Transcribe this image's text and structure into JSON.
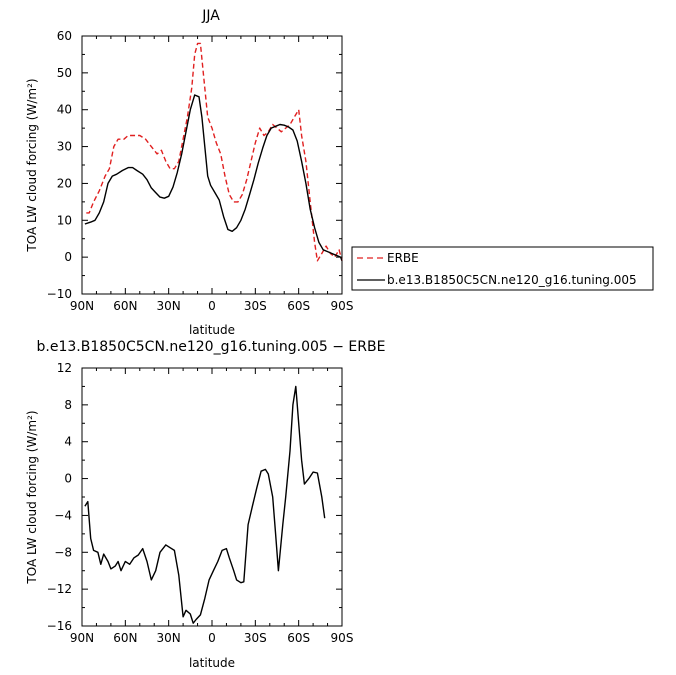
{
  "chart_data": [
    {
      "type": "line",
      "title": "JJA",
      "xlabel": "latitude",
      "ylabel": "TOA LW cloud forcing (W/m²)",
      "xlim": [
        -90,
        90
      ],
      "ylim": [
        -10,
        60
      ],
      "x_ticks": [
        -90,
        -60,
        -30,
        0,
        30,
        60,
        90
      ],
      "x_tick_labels": [
        "90N",
        "60N",
        "30N",
        "0",
        "30S",
        "60S",
        "90S"
      ],
      "y_ticks": [
        -10,
        0,
        10,
        20,
        30,
        40,
        50,
        60
      ],
      "y_tick_labels": [
        "−10",
        "0",
        "10",
        "20",
        "30",
        "40",
        "50",
        "60"
      ],
      "legend": "right",
      "series": [
        {
          "name": "ERBE",
          "color": "#e02020",
          "dash": "dashed",
          "points": [
            [
              -87,
              12
            ],
            [
              -85,
              12
            ],
            [
              -82,
              15
            ],
            [
              -78,
              18
            ],
            [
              -74,
              22
            ],
            [
              -71,
              24
            ],
            [
              -68,
              30
            ],
            [
              -65,
              32
            ],
            [
              -61,
              32
            ],
            [
              -58,
              33
            ],
            [
              -54,
              33
            ],
            [
              -50,
              33
            ],
            [
              -46,
              32
            ],
            [
              -42,
              30
            ],
            [
              -38,
              28
            ],
            [
              -35,
              29
            ],
            [
              -32,
              26
            ],
            [
              -29,
              24
            ],
            [
              -26,
              24
            ],
            [
              -23,
              26
            ],
            [
              -20,
              32
            ],
            [
              -17,
              38
            ],
            [
              -14,
              46
            ],
            [
              -12,
              55
            ],
            [
              -10,
              58
            ],
            [
              -8,
              58
            ],
            [
              -6,
              50
            ],
            [
              -3,
              38
            ],
            [
              0,
              35
            ],
            [
              3,
              31
            ],
            [
              6,
              28
            ],
            [
              9,
              22
            ],
            [
              12,
              17
            ],
            [
              15,
              15
            ],
            [
              18,
              15
            ],
            [
              21,
              17
            ],
            [
              24,
              21
            ],
            [
              27,
              26
            ],
            [
              30,
              31
            ],
            [
              33,
              35
            ],
            [
              36,
              33
            ],
            [
              39,
              34
            ],
            [
              42,
              36
            ],
            [
              45,
              35
            ],
            [
              48,
              34
            ],
            [
              51,
              35
            ],
            [
              54,
              36
            ],
            [
              57,
              38
            ],
            [
              60,
              40
            ],
            [
              62,
              33
            ],
            [
              65,
              26
            ],
            [
              68,
              15
            ],
            [
              71,
              4
            ],
            [
              73,
              -1
            ],
            [
              76,
              1
            ],
            [
              79,
              3
            ],
            [
              82,
              1
            ],
            [
              85,
              0
            ],
            [
              88,
              2
            ],
            [
              90,
              -1
            ]
          ]
        },
        {
          "name": "b.e13.B1850C5CN.ne120_g16.tuning.005",
          "color": "#000000",
          "dash": "solid",
          "points": [
            [
              -88,
              9
            ],
            [
              -84,
              9.5
            ],
            [
              -81,
              10
            ],
            [
              -78,
              12
            ],
            [
              -75,
              15
            ],
            [
              -72,
              20
            ],
            [
              -69,
              22
            ],
            [
              -66,
              22.5
            ],
            [
              -62,
              23.5
            ],
            [
              -58,
              24.3
            ],
            [
              -55,
              24.3
            ],
            [
              -52,
              23.5
            ],
            [
              -48,
              22.5
            ],
            [
              -45,
              21
            ],
            [
              -42,
              18.8
            ],
            [
              -39,
              17.5
            ],
            [
              -36,
              16.3
            ],
            [
              -33,
              16
            ],
            [
              -30,
              16.5
            ],
            [
              -27,
              19
            ],
            [
              -24,
              23
            ],
            [
              -21,
              28
            ],
            [
              -18,
              34
            ],
            [
              -15,
              40
            ],
            [
              -12,
              44
            ],
            [
              -9,
              43.5
            ],
            [
              -7,
              38
            ],
            [
              -5,
              30
            ],
            [
              -3,
              22
            ],
            [
              -1,
              19.5
            ],
            [
              2,
              17.5
            ],
            [
              5,
              15.5
            ],
            [
              8,
              11
            ],
            [
              11,
              7.5
            ],
            [
              14,
              7
            ],
            [
              17,
              8
            ],
            [
              20,
              10
            ],
            [
              23,
              13
            ],
            [
              26,
              17
            ],
            [
              29,
              21
            ],
            [
              32,
              25.5
            ],
            [
              35,
              29.5
            ],
            [
              38,
              33
            ],
            [
              41,
              35
            ],
            [
              44,
              35.5
            ],
            [
              47,
              36
            ],
            [
              50,
              35.8
            ],
            [
              53,
              35.3
            ],
            [
              56,
              34.5
            ],
            [
              59,
              31.5
            ],
            [
              62,
              26
            ],
            [
              65,
              20
            ],
            [
              68,
              13
            ],
            [
              71,
              8
            ],
            [
              74,
              4
            ],
            [
              77,
              2
            ],
            [
              80,
              1.5
            ],
            [
              83,
              1
            ],
            [
              86,
              0.5
            ],
            [
              89,
              0
            ],
            [
              90,
              -1
            ]
          ]
        }
      ]
    },
    {
      "type": "line",
      "title": "b.e13.B1850C5CN.ne120_g16.tuning.005 − ERBE",
      "xlabel": "latitude",
      "ylabel": "TOA LW cloud forcing (W/m²)",
      "xlim": [
        -90,
        90
      ],
      "ylim": [
        -16,
        12
      ],
      "x_ticks": [
        -90,
        -60,
        -30,
        0,
        30,
        60,
        90
      ],
      "x_tick_labels": [
        "90N",
        "60N",
        "30N",
        "0",
        "30S",
        "60S",
        "90S"
      ],
      "y_ticks": [
        -16,
        -12,
        -8,
        -4,
        0,
        4,
        8,
        12
      ],
      "y_tick_labels": [
        "−16",
        "−12",
        "−8",
        "−4",
        "0",
        "4",
        "8",
        "12"
      ],
      "series": [
        {
          "color": "#000000",
          "dash": "solid",
          "points": [
            [
              -88,
              -3
            ],
            [
              -86,
              -2.5
            ],
            [
              -84,
              -6.5
            ],
            [
              -82,
              -7.8
            ],
            [
              -79,
              -8
            ],
            [
              -77,
              -9.3
            ],
            [
              -75,
              -8.2
            ],
            [
              -72,
              -9
            ],
            [
              -70,
              -9.8
            ],
            [
              -67,
              -9.5
            ],
            [
              -65,
              -9
            ],
            [
              -63,
              -10
            ],
            [
              -60,
              -9
            ],
            [
              -57,
              -9.3
            ],
            [
              -54,
              -8.6
            ],
            [
              -51,
              -8.3
            ],
            [
              -48,
              -7.6
            ],
            [
              -45,
              -9
            ],
            [
              -42,
              -11
            ],
            [
              -39,
              -10
            ],
            [
              -36,
              -8
            ],
            [
              -32,
              -7.2
            ],
            [
              -29,
              -7.5
            ],
            [
              -26,
              -7.8
            ],
            [
              -23,
              -10.5
            ],
            [
              -20,
              -15
            ],
            [
              -18,
              -14.3
            ],
            [
              -15,
              -14.7
            ],
            [
              -13,
              -15.7
            ],
            [
              -11,
              -15.3
            ],
            [
              -8,
              -14.8
            ],
            [
              -5,
              -13
            ],
            [
              -2,
              -11
            ],
            [
              1,
              -10
            ],
            [
              4,
              -9
            ],
            [
              7,
              -7.8
            ],
            [
              10,
              -7.6
            ],
            [
              12,
              -8.6
            ],
            [
              15,
              -10
            ],
            [
              17,
              -11
            ],
            [
              20,
              -11.3
            ],
            [
              22,
              -11.2
            ],
            [
              25,
              -5
            ],
            [
              28,
              -3
            ],
            [
              31,
              -1
            ],
            [
              34,
              0.8
            ],
            [
              37,
              1
            ],
            [
              39,
              0.5
            ],
            [
              42,
              -2
            ],
            [
              44,
              -6
            ],
            [
              46,
              -10
            ],
            [
              49,
              -5
            ],
            [
              51,
              -2
            ],
            [
              54,
              3
            ],
            [
              56,
              8
            ],
            [
              58,
              10
            ],
            [
              60,
              6
            ],
            [
              62,
              2
            ],
            [
              64,
              -0.6
            ],
            [
              67,
              0
            ],
            [
              70,
              0.7
            ],
            [
              73,
              0.6
            ],
            [
              76,
              -2
            ],
            [
              78,
              -4.3
            ]
          ]
        }
      ]
    }
  ]
}
